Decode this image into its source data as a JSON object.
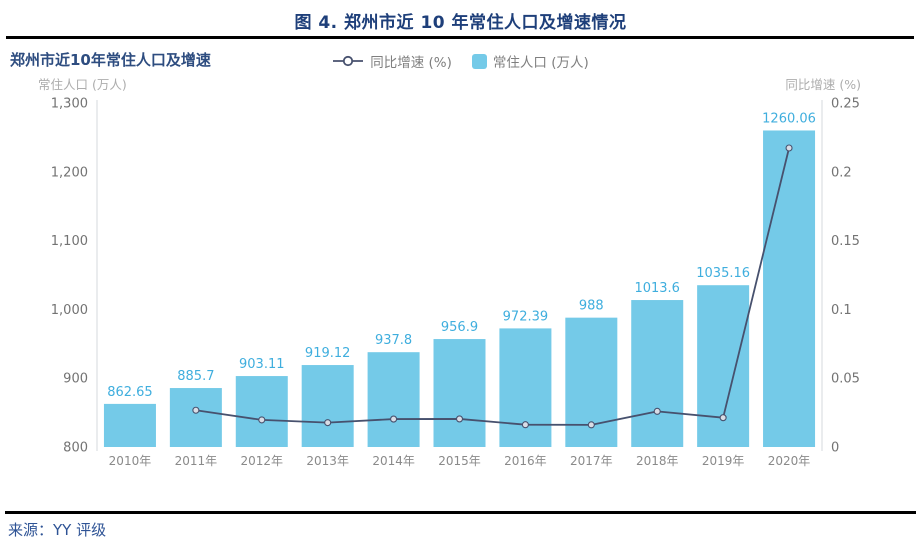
{
  "page": {
    "title": "图 4. 郑州市近 10 年常住人口及增速情况",
    "source_label": "来源：YY 评级"
  },
  "colors": {
    "title_navy": "#1E3F7A",
    "subtitle_navy": "#2E4D80",
    "bar_fill": "#74CAE8",
    "bar_label": "#3FAEDE",
    "line": "#47516E",
    "marker_fill": "#D9DDE6",
    "axis_line": "#E3E5E8",
    "tick_text": "#737373",
    "x_label_text": "#8A8A8A",
    "axis_title_text": "#ADADAD",
    "legend_text": "#7F7F7F",
    "source_blue": "#2E5395",
    "rule_black": "#000000"
  },
  "chart_data": {
    "type": "bar+line combo",
    "title": "郑州市近10年常住人口及增速",
    "categories": [
      "2010年",
      "2011年",
      "2012年",
      "2013年",
      "2014年",
      "2015年",
      "2016年",
      "2017年",
      "2018年",
      "2019年",
      "2020年"
    ],
    "series": [
      {
        "name": "常住人口 (万人)",
        "type": "bar",
        "axis": "left",
        "values": [
          862.65,
          885.7,
          903.11,
          919.12,
          937.8,
          956.9,
          972.39,
          988,
          1013.6,
          1035.16,
          1260.06
        ],
        "labels": [
          "862.65",
          "885.7",
          "903.11",
          "919.12",
          "937.8",
          "956.9",
          "972.39",
          "988",
          "1013.6",
          "1035.16",
          "1260.06"
        ]
      },
      {
        "name": "同比增速 (%)",
        "type": "line",
        "axis": "right",
        "values": [
          null,
          0.0267,
          0.0197,
          0.0177,
          0.0203,
          0.0204,
          0.0162,
          0.0161,
          0.0259,
          0.0213,
          0.2173
        ]
      }
    ],
    "legend": {
      "line_label": "同比增速 (%)",
      "bar_label": "常住人口 (万人)"
    },
    "left_axis": {
      "title": "常住人口 (万人)",
      "min": 800,
      "max": 1300,
      "tick_labels_top_to_bottom": [
        "1,300",
        "1,200",
        "1,100",
        "1,000",
        "900",
        "800"
      ]
    },
    "right_axis": {
      "title": "同比增速 (%)",
      "min": 0,
      "max": 0.25,
      "tick_labels_top_to_bottom": [
        "0.25",
        "0.2",
        "0.15",
        "0.1",
        "0.05",
        "0"
      ]
    },
    "layout_hints": {
      "grid": "off",
      "legend_position": "top-center",
      "bar_value_labels": "above bars, blue",
      "line_starts_at": "2011年"
    }
  }
}
